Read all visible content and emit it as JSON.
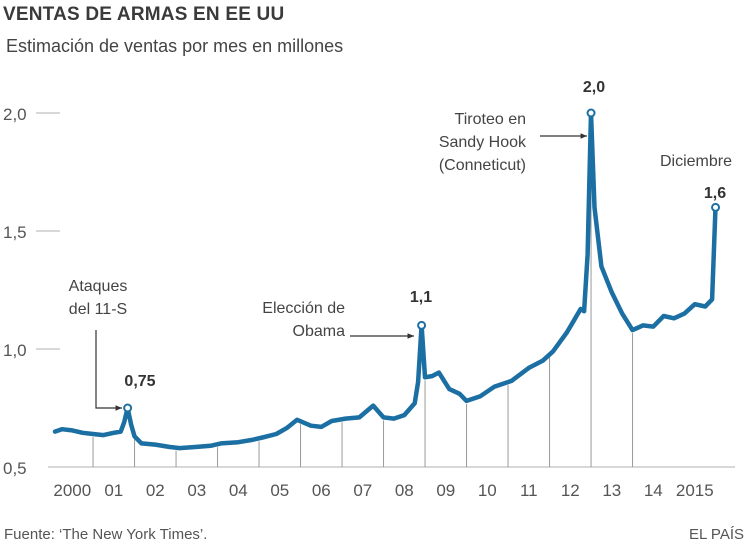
{
  "chart_data": {
    "type": "line",
    "title": "VENTAS DE ARMAS EN EE UU",
    "subtitle": "Estimación de ventas por mes en millones",
    "xlabel": "",
    "ylabel": "",
    "ylim": [
      0.5,
      2.0
    ],
    "yticks": [
      {
        "value": 0.5,
        "label": "0,5"
      },
      {
        "value": 1.0,
        "label": "1,0"
      },
      {
        "value": 1.5,
        "label": "1,5"
      },
      {
        "value": 2.0,
        "label": "2,0"
      }
    ],
    "xlim": [
      "2000-01",
      "2015-12"
    ],
    "xticks": [
      "2000",
      "01",
      "02",
      "03",
      "04",
      "05",
      "06",
      "07",
      "08",
      "09",
      "10",
      "11",
      "12",
      "13",
      "14",
      "2015"
    ],
    "grid": "vertical lines at each year boundary",
    "line_color": "#1c6fa3",
    "series": [
      {
        "points": [
          [
            "2000-01",
            0.65
          ],
          [
            "2000-03",
            0.66
          ],
          [
            "2000-06",
            0.655
          ],
          [
            "2000-09",
            0.645
          ],
          [
            "2000-12",
            0.64
          ],
          [
            "2001-03",
            0.635
          ],
          [
            "2001-06",
            0.645
          ],
          [
            "2001-08",
            0.65
          ],
          [
            "2001-09",
            0.69
          ],
          [
            "2001-10",
            0.75
          ],
          [
            "2001-11",
            0.68
          ],
          [
            "2001-12",
            0.63
          ],
          [
            "2002-02",
            0.6
          ],
          [
            "2002-06",
            0.595
          ],
          [
            "2002-10",
            0.585
          ],
          [
            "2003-01",
            0.58
          ],
          [
            "2003-06",
            0.585
          ],
          [
            "2003-10",
            0.59
          ],
          [
            "2004-01",
            0.6
          ],
          [
            "2004-06",
            0.605
          ],
          [
            "2004-10",
            0.615
          ],
          [
            "2005-01",
            0.625
          ],
          [
            "2005-05",
            0.64
          ],
          [
            "2005-08",
            0.665
          ],
          [
            "2005-11",
            0.7
          ],
          [
            "2006-03",
            0.675
          ],
          [
            "2006-06",
            0.67
          ],
          [
            "2006-09",
            0.695
          ],
          [
            "2007-01",
            0.705
          ],
          [
            "2007-05",
            0.71
          ],
          [
            "2007-09",
            0.76
          ],
          [
            "2007-12",
            0.71
          ],
          [
            "2008-03",
            0.705
          ],
          [
            "2008-06",
            0.72
          ],
          [
            "2008-09",
            0.77
          ],
          [
            "2008-10",
            0.86
          ],
          [
            "2008-11",
            1.1
          ],
          [
            "2008-12",
            0.88
          ],
          [
            "2009-02",
            0.885
          ],
          [
            "2009-04",
            0.9
          ],
          [
            "2009-07",
            0.83
          ],
          [
            "2009-10",
            0.81
          ],
          [
            "2009-12",
            0.78
          ],
          [
            "2010-04",
            0.8
          ],
          [
            "2010-08",
            0.84
          ],
          [
            "2011-01",
            0.865
          ],
          [
            "2011-06",
            0.92
          ],
          [
            "2011-10",
            0.95
          ],
          [
            "2012-01",
            0.99
          ],
          [
            "2012-05",
            1.07
          ],
          [
            "2012-07",
            1.12
          ],
          [
            "2012-09",
            1.17
          ],
          [
            "2012-10",
            1.16
          ],
          [
            "2012-11",
            1.4
          ],
          [
            "2012-12",
            2.0
          ],
          [
            "2013-01",
            1.6
          ],
          [
            "2013-03",
            1.35
          ],
          [
            "2013-06",
            1.24
          ],
          [
            "2013-09",
            1.15
          ],
          [
            "2013-12",
            1.08
          ],
          [
            "2014-03",
            1.1
          ],
          [
            "2014-06",
            1.095
          ],
          [
            "2014-09",
            1.14
          ],
          [
            "2014-12",
            1.13
          ],
          [
            "2015-03",
            1.15
          ],
          [
            "2015-06",
            1.19
          ],
          [
            "2015-09",
            1.18
          ],
          [
            "2015-11",
            1.21
          ],
          [
            "2015-12",
            1.6
          ]
        ]
      }
    ],
    "annotations": [
      {
        "at": "2001-10",
        "value_label": "0,75",
        "text": [
          "Ataques",
          "del 11-S"
        ]
      },
      {
        "at": "2008-11",
        "value_label": "1,1",
        "text": [
          "Elección de",
          "Obama"
        ]
      },
      {
        "at": "2012-12",
        "value_label": "2,0",
        "text": [
          "Tiroteo en",
          "Sandy Hook",
          "(Conneticut)"
        ]
      },
      {
        "at": "2015-12",
        "value_label": "1,6",
        "text": [
          "Diciembre"
        ]
      }
    ]
  },
  "footer": {
    "source": "Fuente: ‘The New York Times’.",
    "brand": "EL PAÍS"
  }
}
